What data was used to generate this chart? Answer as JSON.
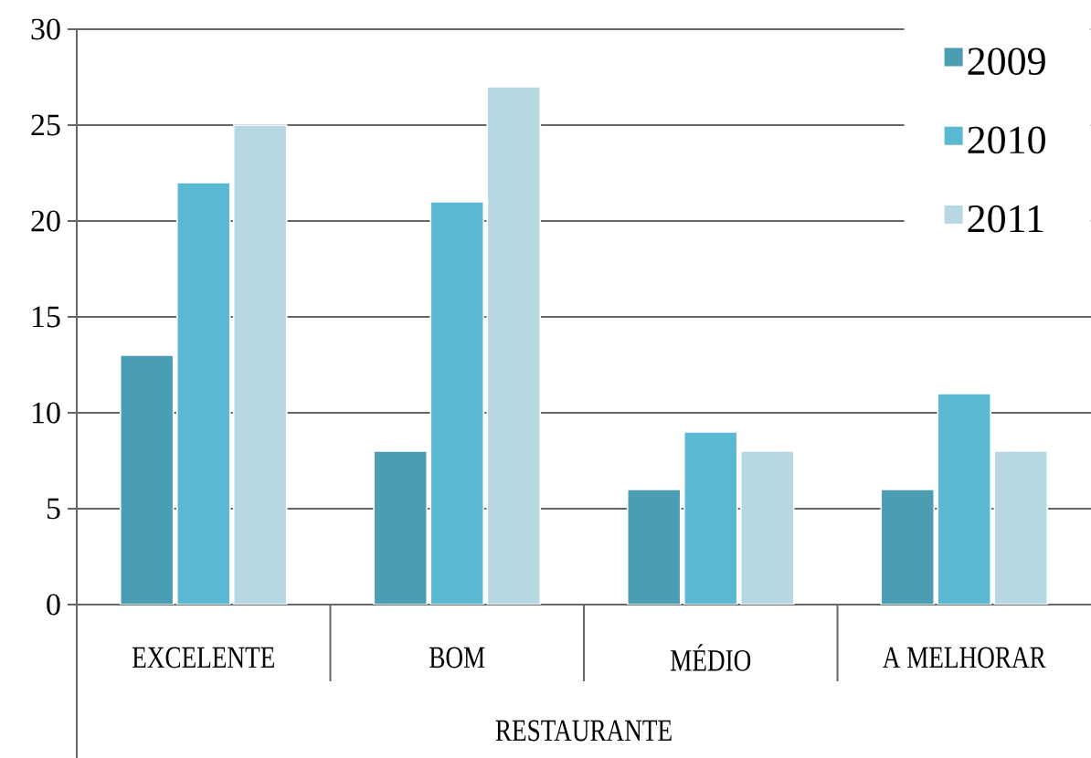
{
  "chart_data": {
    "type": "bar",
    "categories": [
      "EXCELENTE",
      "BOM",
      "MÉDIO",
      "A MELHORAR"
    ],
    "series": [
      {
        "name": "2009",
        "color": "#4a9db3",
        "values": [
          13,
          8,
          6,
          6
        ]
      },
      {
        "name": "2010",
        "color": "#5ab8d2",
        "values": [
          22,
          21,
          9,
          11
        ]
      },
      {
        "name": "2011",
        "color": "#b7d8e3",
        "values": [
          25,
          27,
          8,
          8
        ]
      }
    ],
    "xlabel": "RESTAURANTE",
    "ylim": [
      0,
      30
    ],
    "yticks": [
      0,
      5,
      10,
      15,
      20,
      25,
      30
    ],
    "grid": "y",
    "legend": "top right"
  }
}
